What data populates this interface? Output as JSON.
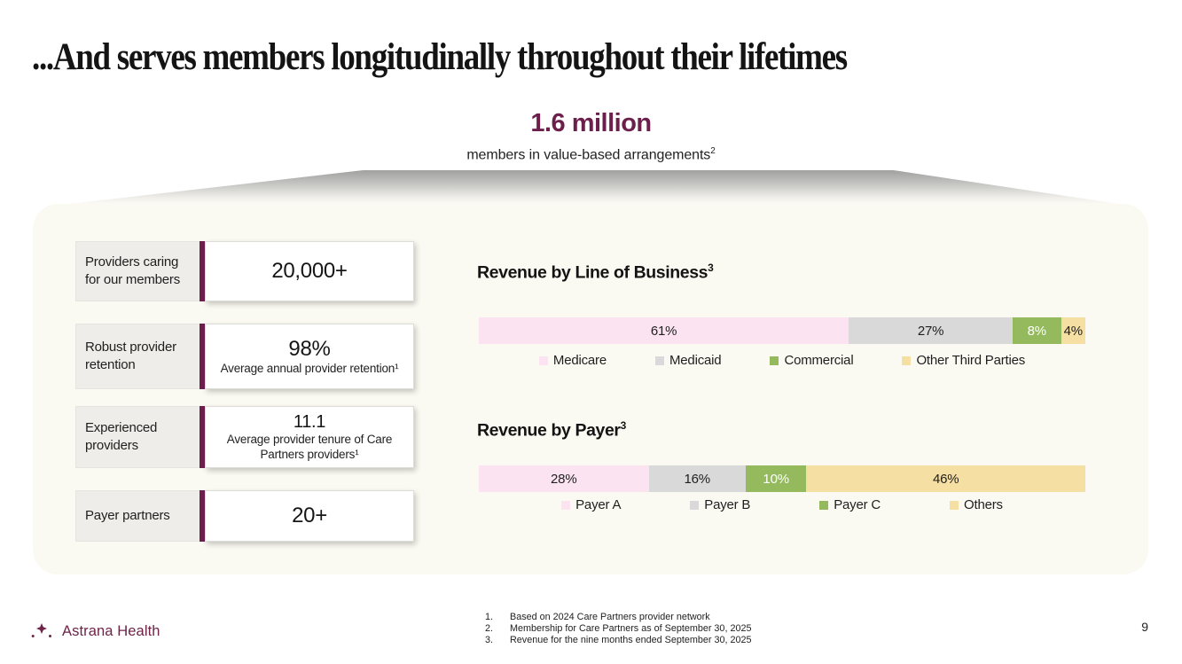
{
  "slide": {
    "title": "...And serves members longitudinally throughout their lifetimes",
    "page_number": "9"
  },
  "hero": {
    "headline": "1.6 million",
    "subtitle": "members in value-based arrangements",
    "subtitle_footnote": "2"
  },
  "stats": [
    {
      "label": "Providers caring for our members",
      "value": "20,000+",
      "sub": ""
    },
    {
      "label": "Robust provider retention",
      "value": "98%",
      "sub": "Average annual provider retention¹"
    },
    {
      "label": "Experienced providers",
      "value": "11.1",
      "sub": "Average provider tenure of Care Partners providers¹"
    },
    {
      "label": "Payer partners",
      "value": "20+",
      "sub": ""
    }
  ],
  "chart_data": [
    {
      "type": "bar",
      "variant": "stacked-horizontal-100pct",
      "title": "Revenue by Line of Business",
      "title_footnote": "3",
      "unit": "%",
      "legend_position": "bottom",
      "segments": [
        {
          "name": "Medicare",
          "value": 61,
          "label": "61%",
          "color": "#fce3f1",
          "label_color": "#1f1f1f"
        },
        {
          "name": "Medicaid",
          "value": 27,
          "label": "27%",
          "color": "#d9d9d9",
          "label_color": "#1f1f1f"
        },
        {
          "name": "Commercial",
          "value": 8,
          "label": "8%",
          "color": "#94ba5d",
          "label_color": "#ffffff"
        },
        {
          "name": "Other Third Parties",
          "value": 4,
          "label": "4%",
          "color": "#f6dfa2",
          "label_color": "#1f1f1f"
        }
      ]
    },
    {
      "type": "bar",
      "variant": "stacked-horizontal-100pct",
      "title": "Revenue by Payer",
      "title_footnote": "3",
      "unit": "%",
      "legend_position": "bottom",
      "segments": [
        {
          "name": "Payer A",
          "value": 28,
          "label": "28%",
          "color": "#fce3f1",
          "label_color": "#1f1f1f"
        },
        {
          "name": "Payer B",
          "value": 16,
          "label": "16%",
          "color": "#d9d9d9",
          "label_color": "#1f1f1f"
        },
        {
          "name": "Payer C",
          "value": 10,
          "label": "10%",
          "color": "#94ba5d",
          "label_color": "#ffffff"
        },
        {
          "name": "Others",
          "value": 46,
          "label": "46%",
          "color": "#f6dfa2",
          "label_color": "#1f1f1f"
        }
      ]
    }
  ],
  "footer": {
    "logo_text": "Astrana Health",
    "footnotes": [
      {
        "num": "1.",
        "text": "Based on 2024 Care Partners provider network"
      },
      {
        "num": "2.",
        "text": "Membership for Care Partners as of September 30, 2025"
      },
      {
        "num": "3.",
        "text": "Revenue for the nine months ended September 30, 2025"
      }
    ]
  },
  "colors": {
    "accent_maroon": "#6e1f4d",
    "logo_maroon": "#6d2448",
    "panel_bg": "#fbfaf2",
    "stat_label_bg": "#efede9",
    "segment_pink": "#fce3f1",
    "segment_gray": "#d9d9d9",
    "segment_green": "#94ba5d",
    "segment_yellow": "#f6dfa2"
  }
}
